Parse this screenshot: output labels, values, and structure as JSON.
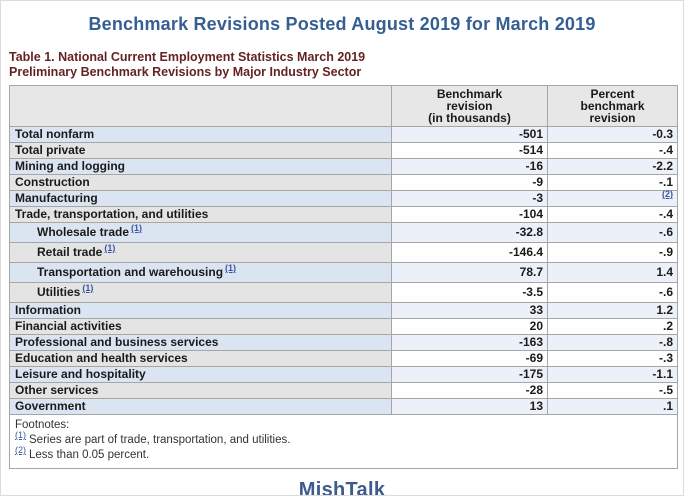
{
  "page": {
    "title": "Benchmark Revisions Posted August 2019 for March 2019",
    "logo_text": "MishTalk"
  },
  "colors": {
    "title_blue": "#365f91",
    "caption_maroon": "#632423",
    "row_blue": "#dbe5f1",
    "row_blue_light": "#ecf1f9",
    "row_gray": "#e4e4e4",
    "header_gray": "#e7e7e7",
    "link_blue": "#3a56a5",
    "logo_blue": "#3d5c8c"
  },
  "table": {
    "caption_line1": "Table 1. National Current Employment Statistics March 2019",
    "caption_line2": "Preliminary Benchmark Revisions by Major Industry Sector",
    "columns": {
      "stub": "",
      "benchmark": "Benchmark\nrevision\n(in thousands)",
      "percent": "Percent\nbenchmark\nrevision"
    },
    "rows": [
      {
        "label": "Total nonfarm",
        "benchmark": "-501",
        "percent": "-0.3"
      },
      {
        "label": "Total private",
        "benchmark": "-514",
        "percent": "-.4"
      },
      {
        "label": "Mining and logging",
        "benchmark": "-16",
        "percent": "-2.2"
      },
      {
        "label": "Construction",
        "benchmark": "-9",
        "percent": "-.1"
      },
      {
        "label": "Manufacturing",
        "benchmark": "-3",
        "percent": "(2)",
        "percent_is_footnote_link": true
      },
      {
        "label": "Trade, transportation, and utilities",
        "benchmark": "-104",
        "percent": "-.4"
      },
      {
        "label": "Wholesale trade",
        "footnote_ref": "(1)",
        "indent": true,
        "benchmark": "-32.8",
        "percent": "-.6"
      },
      {
        "label": "Retail trade",
        "footnote_ref": "(1)",
        "indent": true,
        "benchmark": "-146.4",
        "percent": "-.9"
      },
      {
        "label": "Transportation and warehousing",
        "footnote_ref": "(1)",
        "indent": true,
        "benchmark": "78.7",
        "percent": "1.4"
      },
      {
        "label": "Utilities",
        "footnote_ref": "(1)",
        "indent": true,
        "benchmark": "-3.5",
        "percent": "-.6"
      },
      {
        "label": "Information",
        "benchmark": "33",
        "percent": "1.2"
      },
      {
        "label": "Financial activities",
        "benchmark": "20",
        "percent": ".2"
      },
      {
        "label": "Professional and business services",
        "benchmark": "-163",
        "percent": "-.8"
      },
      {
        "label": "Education and health services",
        "benchmark": "-69",
        "percent": "-.3"
      },
      {
        "label": "Leisure and hospitality",
        "benchmark": "-175",
        "percent": "-1.1"
      },
      {
        "label": "Other services",
        "benchmark": "-28",
        "percent": "-.5"
      },
      {
        "label": "Government",
        "benchmark": "13",
        "percent": ".1"
      }
    ],
    "footnotes": {
      "heading": "Footnotes:",
      "items": [
        {
          "marker": "(1)",
          "text": "Series are part of trade, transportation, and utilities."
        },
        {
          "marker": "(2)",
          "text": "Less than 0.05 percent."
        }
      ]
    }
  }
}
